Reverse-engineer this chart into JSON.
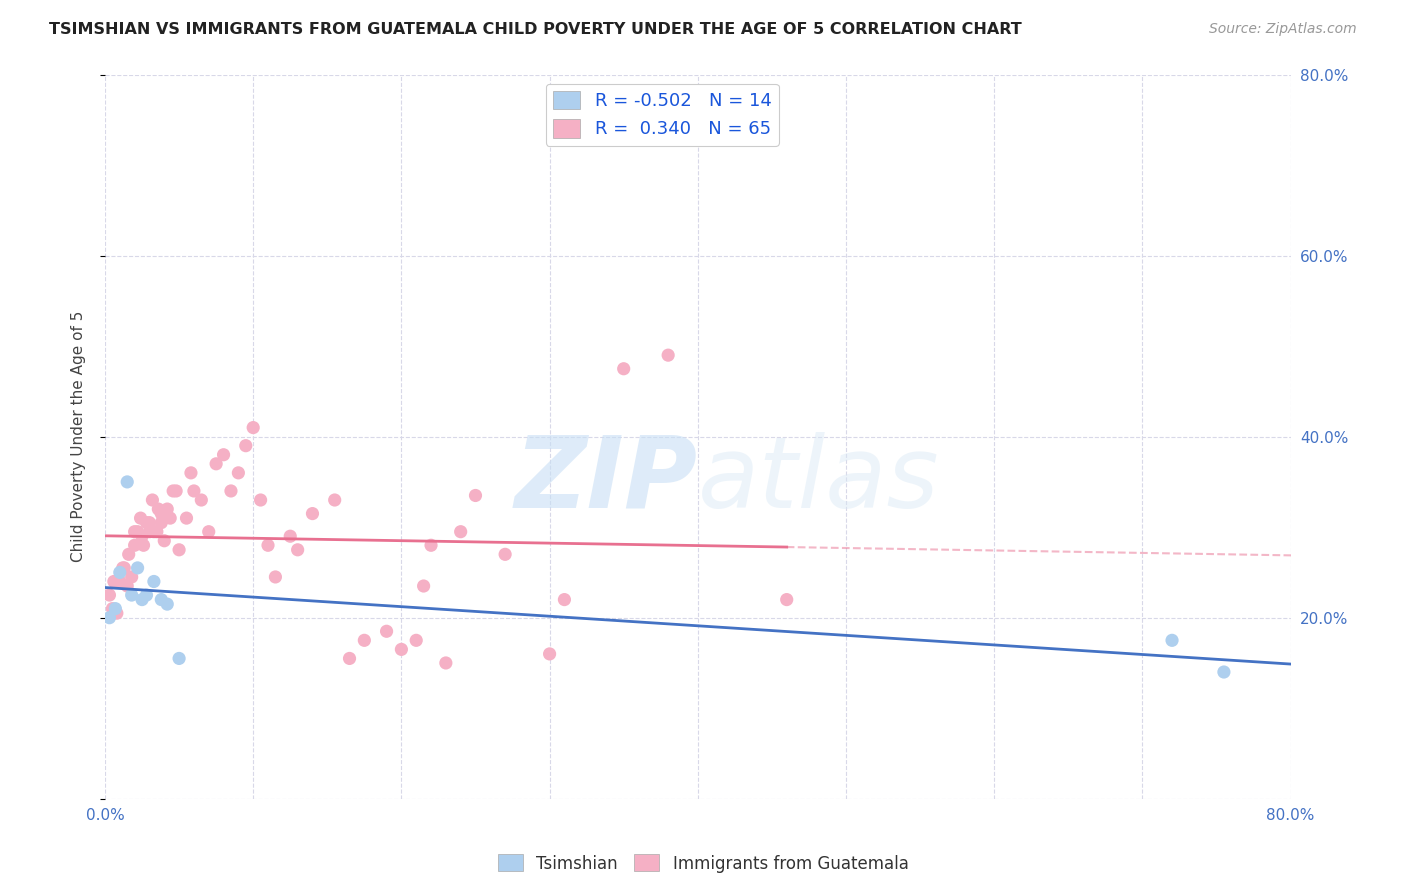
{
  "title": "TSIMSHIAN VS IMMIGRANTS FROM GUATEMALA CHILD POVERTY UNDER THE AGE OF 5 CORRELATION CHART",
  "source": "Source: ZipAtlas.com",
  "ylabel": "Child Poverty Under the Age of 5",
  "xlim": [
    0.0,
    0.8
  ],
  "ylim": [
    0.0,
    0.8
  ],
  "legend_r1": "-0.502",
  "legend_n1": "14",
  "legend_r2": "0.340",
  "legend_n2": "65",
  "tsimshian_color": "#aecfee",
  "guatemala_color": "#f5b0c5",
  "trend_color_tsimshian": "#4472c4",
  "trend_color_guatemala": "#e87090",
  "scatter_size": 90,
  "tsimshian_x": [
    0.003,
    0.007,
    0.01,
    0.015,
    0.018,
    0.022,
    0.025,
    0.028,
    0.033,
    0.038,
    0.042,
    0.05,
    0.72,
    0.755
  ],
  "tsimshian_y": [
    0.2,
    0.21,
    0.25,
    0.35,
    0.225,
    0.255,
    0.22,
    0.225,
    0.24,
    0.22,
    0.215,
    0.155,
    0.175,
    0.14
  ],
  "guatemala_x": [
    0.003,
    0.005,
    0.006,
    0.008,
    0.01,
    0.012,
    0.013,
    0.015,
    0.016,
    0.018,
    0.02,
    0.02,
    0.022,
    0.024,
    0.025,
    0.026,
    0.028,
    0.03,
    0.03,
    0.032,
    0.033,
    0.035,
    0.036,
    0.038,
    0.038,
    0.04,
    0.042,
    0.044,
    0.046,
    0.048,
    0.05,
    0.055,
    0.058,
    0.06,
    0.065,
    0.07,
    0.075,
    0.08,
    0.085,
    0.09,
    0.095,
    0.1,
    0.105,
    0.11,
    0.115,
    0.125,
    0.13,
    0.14,
    0.155,
    0.165,
    0.175,
    0.19,
    0.2,
    0.21,
    0.215,
    0.22,
    0.23,
    0.24,
    0.25,
    0.27,
    0.3,
    0.31,
    0.35,
    0.38,
    0.46
  ],
  "guatemala_y": [
    0.225,
    0.21,
    0.24,
    0.205,
    0.24,
    0.255,
    0.255,
    0.235,
    0.27,
    0.245,
    0.28,
    0.295,
    0.295,
    0.31,
    0.29,
    0.28,
    0.305,
    0.305,
    0.295,
    0.33,
    0.295,
    0.295,
    0.32,
    0.315,
    0.305,
    0.285,
    0.32,
    0.31,
    0.34,
    0.34,
    0.275,
    0.31,
    0.36,
    0.34,
    0.33,
    0.295,
    0.37,
    0.38,
    0.34,
    0.36,
    0.39,
    0.41,
    0.33,
    0.28,
    0.245,
    0.29,
    0.275,
    0.315,
    0.33,
    0.155,
    0.175,
    0.185,
    0.165,
    0.175,
    0.235,
    0.28,
    0.15,
    0.295,
    0.335,
    0.27,
    0.16,
    0.22,
    0.475,
    0.49,
    0.22
  ],
  "watermark_zip": "ZIP",
  "watermark_atlas": "atlas",
  "background_color": "#ffffff",
  "grid_color": "#d8d8e8",
  "tick_color": "#4472c4",
  "ylabel_color": "#444444"
}
